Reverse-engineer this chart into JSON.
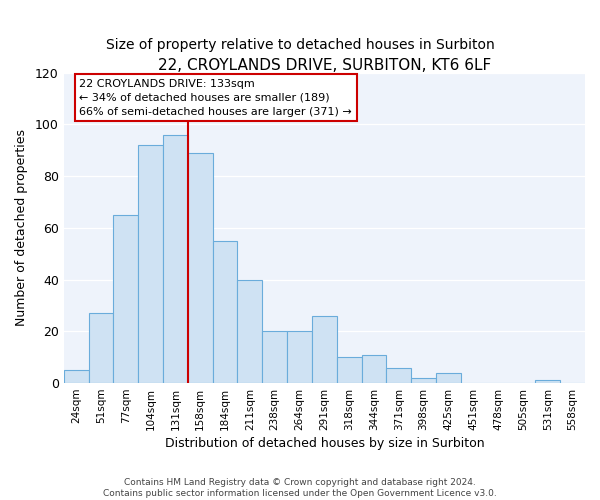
{
  "title": "22, CROYLANDS DRIVE, SURBITON, KT6 6LF",
  "subtitle": "Size of property relative to detached houses in Surbiton",
  "xlabel": "Distribution of detached houses by size in Surbiton",
  "ylabel": "Number of detached properties",
  "bin_labels": [
    "24sqm",
    "51sqm",
    "77sqm",
    "104sqm",
    "131sqm",
    "158sqm",
    "184sqm",
    "211sqm",
    "238sqm",
    "264sqm",
    "291sqm",
    "318sqm",
    "344sqm",
    "371sqm",
    "398sqm",
    "425sqm",
    "451sqm",
    "478sqm",
    "505sqm",
    "531sqm",
    "558sqm"
  ],
  "bar_values": [
    5,
    27,
    65,
    92,
    96,
    89,
    55,
    40,
    20,
    20,
    26,
    10,
    11,
    6,
    2,
    4,
    0,
    0,
    0,
    1,
    0
  ],
  "bar_color": "#cfe2f3",
  "bar_edge_color": "#6aacdb",
  "ylim": [
    0,
    120
  ],
  "yticks": [
    0,
    20,
    40,
    60,
    80,
    100,
    120
  ],
  "vline_color": "#cc0000",
  "annotation_line1": "22 CROYLANDS DRIVE: 133sqm",
  "annotation_line2": "← 34% of detached houses are smaller (189)",
  "annotation_line3": "66% of semi-detached houses are larger (371) →",
  "footer_line1": "Contains HM Land Registry data © Crown copyright and database right 2024.",
  "footer_line2": "Contains public sector information licensed under the Open Government Licence v3.0.",
  "fig_bg_color": "#ffffff",
  "plot_bg_color": "#eef3fb",
  "grid_color": "#ffffff",
  "title_fontsize": 11,
  "subtitle_fontsize": 10
}
